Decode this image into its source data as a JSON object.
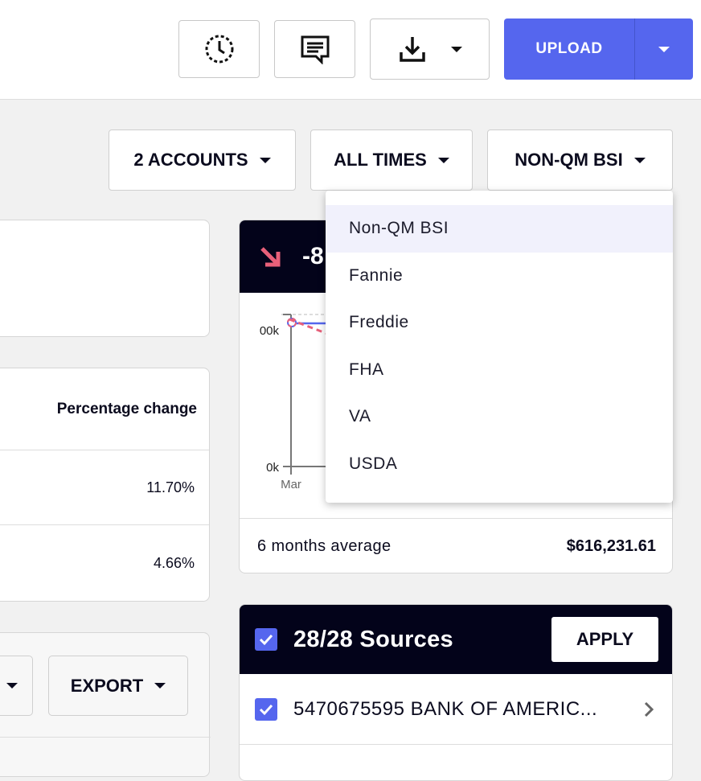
{
  "toolbar": {
    "upload_label": "UPLOAD"
  },
  "filters": {
    "accounts": "2 ACCOUNTS",
    "time": "ALL TIMES",
    "program": "NON-QM BSI"
  },
  "program_menu": {
    "options": [
      "Non-QM BSI",
      "Fannie",
      "Freddie",
      "FHA",
      "VA",
      "USDA"
    ],
    "selected": "Non-QM BSI"
  },
  "table": {
    "header": "Percentage change",
    "rows": [
      "11.70%",
      "4.66%"
    ]
  },
  "list_toolbar": {
    "export_label": "EXPORT"
  },
  "trend_card": {
    "value_partial": "-8",
    "trend": "down",
    "y_ticks": [
      "00k",
      "0k"
    ],
    "x_ticks": [
      "Mar"
    ],
    "avg_label": "6 months average",
    "avg_value": "$616,231.61",
    "colors": {
      "actual": "#5566ee",
      "trend": "#e8607a"
    }
  },
  "sources": {
    "title": "28/28 Sources",
    "apply_label": "APPLY",
    "items": [
      "5470675595 BANK OF AMERIC..."
    ]
  }
}
